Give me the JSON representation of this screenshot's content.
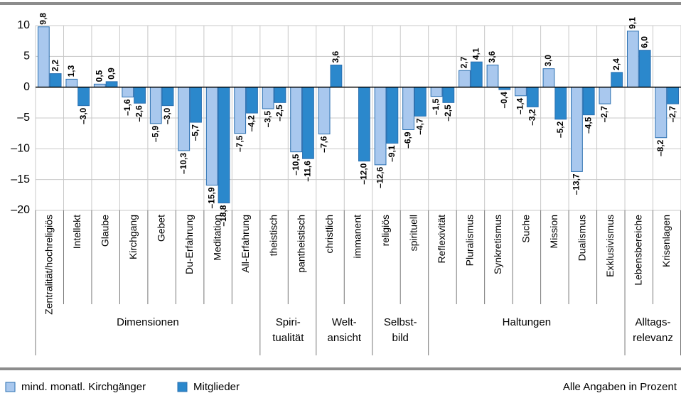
{
  "chart_data": {
    "type": "bar",
    "groups": [
      {
        "label": [
          "Dimensionen"
        ],
        "categories": [
          "Zentralität/hochreligiös",
          "Intellekt",
          "Glaube",
          "Kirchgang",
          "Gebet",
          "Du-Erfahrung",
          "Meditation",
          "All-Erfahrung"
        ]
      },
      {
        "label": [
          "Spiri-",
          "tualität"
        ],
        "categories": [
          "theistisch",
          "pantheistisch"
        ]
      },
      {
        "label": [
          "Welt-",
          "ansicht"
        ],
        "categories": [
          "christlich",
          "immanent"
        ]
      },
      {
        "label": [
          "Selbst-",
          "bild"
        ],
        "categories": [
          "religiös",
          "spirituell"
        ]
      },
      {
        "label": [
          "Haltungen"
        ],
        "categories": [
          "Reflexivität",
          "Pluralismus",
          "Synkretismus",
          "Suche",
          "Mission",
          "Dualismus",
          "Exklusivismus"
        ]
      },
      {
        "label": [
          "Alltags-",
          "relevanz"
        ],
        "categories": [
          "Lebensbereiche",
          "Krisenlagen"
        ]
      }
    ],
    "series": [
      {
        "name": "mind. monatl. Kirchgänger",
        "color": "#a9c8ee",
        "values": [
          9.8,
          1.3,
          0.5,
          -1.6,
          -5.9,
          -10.3,
          -15.9,
          -7.5,
          -3.5,
          -10.5,
          -7.6,
          null,
          -12.6,
          -6.9,
          -1.5,
          2.7,
          3.6,
          -1.4,
          3.0,
          -13.7,
          -2.7,
          9.1,
          -8.2
        ],
        "value_labels": [
          "9,8",
          "1,3",
          "0,5",
          "–1,6",
          "–5,9",
          "–10,3",
          "–15,9",
          "–7,5",
          "–3,5",
          "–10,5",
          "–7,6",
          null,
          "–12,6",
          "–6,9",
          "–1,5",
          "2,7",
          "3,6",
          "–1,4",
          "3,0",
          "–13,7",
          "–2,7",
          "9,1",
          "–8,2"
        ]
      },
      {
        "name": "Mitglieder",
        "color": "#2b88cc",
        "values": [
          2.2,
          -3.0,
          0.9,
          -2.6,
          -3.0,
          -5.7,
          -18.8,
          -4.2,
          -2.5,
          -11.6,
          3.6,
          -12.0,
          -9.1,
          -4.7,
          -2.5,
          4.1,
          -0.4,
          -3.2,
          -5.2,
          -4.5,
          2.4,
          6.0,
          -2.7
        ],
        "value_labels": [
          "2,2",
          "–3,0",
          "0,9",
          "–2,6",
          "–3,0",
          "–5,7",
          "–18,8",
          "–4,2",
          "–2,5",
          "–11,6",
          "3,6",
          "–12,0",
          "–9,1",
          "–4,7",
          "–2,5",
          "4,1",
          "–0,4",
          "–3,2",
          "–5,2",
          "–4,5",
          "2,4",
          "6,0",
          "–2,7"
        ]
      }
    ],
    "ylim": [
      -20,
      10
    ],
    "yticks": [
      10,
      5,
      0,
      {
        "value": -5,
        "label": "–5"
      },
      {
        "value": -10,
        "label": "–10"
      },
      {
        "value": -15,
        "label": "–15"
      },
      {
        "value": -20,
        "label": "–20"
      }
    ],
    "grid": true,
    "note": "Alle Angaben in Prozent"
  }
}
